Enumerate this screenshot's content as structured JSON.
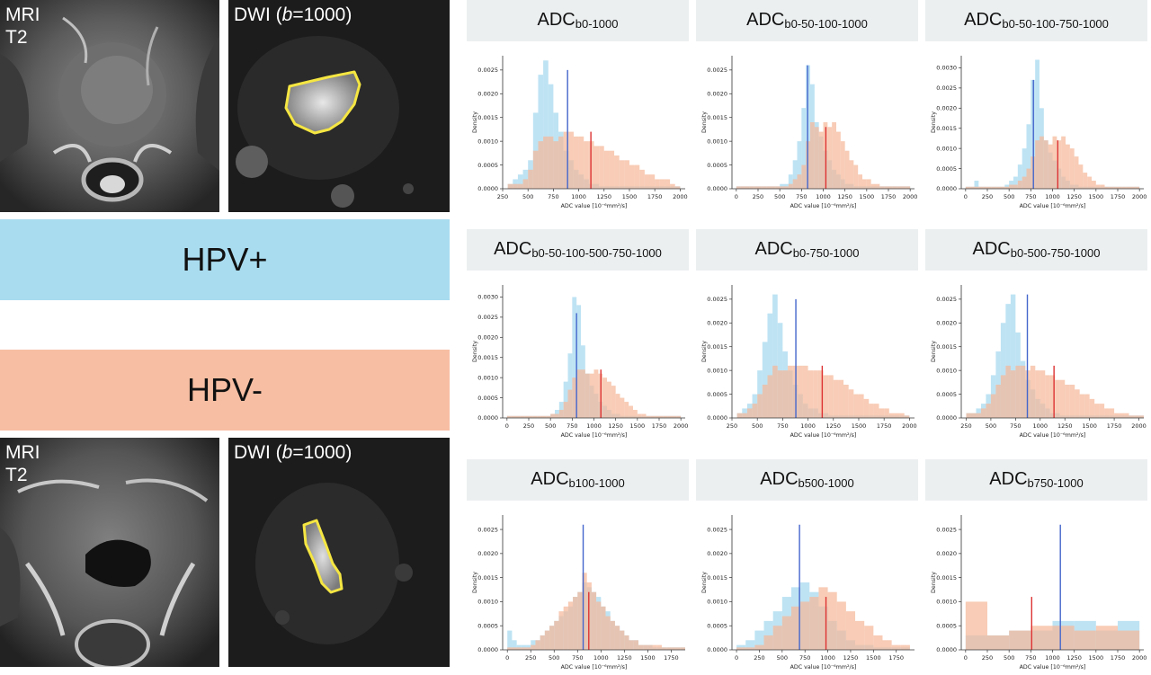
{
  "images": {
    "top": {
      "mri_label": "MRI\nT2",
      "dwi_prefix": "DWI (",
      "dwi_b": "b",
      "dwi_suffix": "=1000)"
    },
    "bottom": {
      "mri_label": "MRI\nT2",
      "dwi_prefix": "DWI (",
      "dwi_b": "b",
      "dwi_suffix": "=1000)"
    }
  },
  "legend": {
    "positive": "HPV+",
    "negative": "HPV-"
  },
  "colors": {
    "positive": "#a5d8ee",
    "negative": "#f5b89a",
    "positive_band": "#a9dcef",
    "negative_band": "#f7bea3",
    "positive_median": "#4466cc",
    "negative_median": "#dd3333",
    "title_bg": "#eceff0"
  },
  "chart_data": [
    {
      "type": "histogram",
      "title_main": "ADC",
      "title_sub": "b0-1000",
      "xlabel": "ADC value [10⁻⁶mm²/s]",
      "ylabel": "Density",
      "xlim": [
        250,
        2050
      ],
      "ylim": [
        0,
        0.0028
      ],
      "xticks": [
        250,
        500,
        750,
        1000,
        1250,
        1500,
        1750,
        2000
      ],
      "yticks": [
        "0.0000",
        "0.0005",
        "0.0010",
        "0.0015",
        "0.0020",
        "0.0025"
      ],
      "bin_start": 300,
      "bin_width": 50,
      "hpv_pos": [
        0.0001,
        0.0002,
        0.0003,
        0.0004,
        0.0006,
        0.0016,
        0.0024,
        0.0027,
        0.0022,
        0.0016,
        0.0012,
        0.0008,
        0.0006,
        0.0004,
        0.0003,
        0.0002,
        0.0001,
        0.0001,
        5e-05,
        5e-05,
        5e-05,
        5e-05,
        5e-05,
        5e-05,
        5e-05,
        5e-05,
        5e-05,
        5e-05,
        5e-05,
        5e-05,
        5e-05,
        5e-05,
        5e-05,
        5e-05
      ],
      "hpv_neg": [
        0.0001,
        0.0001,
        0.0001,
        0.0002,
        0.0004,
        0.0008,
        0.001,
        0.0011,
        0.0011,
        0.001,
        0.0011,
        0.0012,
        0.0012,
        0.0011,
        0.0011,
        0.001,
        0.001,
        0.0009,
        0.0009,
        0.0008,
        0.0008,
        0.0007,
        0.0006,
        0.0006,
        0.0005,
        0.0005,
        0.0004,
        0.0003,
        0.0003,
        0.0002,
        0.0002,
        0.0002,
        0.0001,
        5e-05
      ],
      "median_pos": 890,
      "median_neg": 1120,
      "median_pos_height": 0.0025,
      "median_neg_height": 0.0012
    },
    {
      "type": "histogram",
      "title_main": "ADC",
      "title_sub": "b0-50-100-1000",
      "xlabel": "ADC value [10⁻⁶mm²/s]",
      "ylabel": "Density",
      "xlim": [
        -50,
        2050
      ],
      "ylim": [
        0,
        0.0028
      ],
      "xticks": [
        0,
        250,
        500,
        750,
        1000,
        1250,
        1500,
        1750,
        2000
      ],
      "yticks": [
        "0.0000",
        "0.0005",
        "0.0010",
        "0.0015",
        "0.0020",
        "0.0025"
      ],
      "bin_start": 0,
      "bin_width": 50,
      "hpv_pos": [
        5e-05,
        5e-05,
        5e-05,
        5e-05,
        5e-05,
        5e-05,
        5e-05,
        5e-05,
        5e-05,
        5e-05,
        0.0001,
        0.0001,
        0.0003,
        0.0006,
        0.001,
        0.0017,
        0.0026,
        0.0022,
        0.0014,
        0.0011,
        0.0008,
        0.0006,
        0.0004,
        0.0003,
        0.0002,
        0.0001,
        0.0001,
        5e-05,
        5e-05,
        5e-05,
        5e-05,
        5e-05,
        5e-05,
        5e-05,
        5e-05,
        5e-05,
        5e-05,
        5e-05,
        5e-05,
        5e-05
      ],
      "hpv_neg": [
        5e-05,
        5e-05,
        5e-05,
        5e-05,
        5e-05,
        5e-05,
        5e-05,
        5e-05,
        5e-05,
        5e-05,
        5e-05,
        5e-05,
        0.0001,
        0.0002,
        0.0003,
        0.0005,
        0.001,
        0.0014,
        0.0013,
        0.0012,
        0.0014,
        0.0013,
        0.0014,
        0.0012,
        0.001,
        0.0008,
        0.0006,
        0.0005,
        0.0003,
        0.0002,
        0.0002,
        0.0001,
        0.0001,
        5e-05,
        5e-05,
        5e-05,
        5e-05,
        5e-05,
        5e-05,
        5e-05
      ],
      "median_pos": 820,
      "median_neg": 1030,
      "median_pos_height": 0.0026,
      "median_neg_height": 0.0013
    },
    {
      "type": "histogram",
      "title_main": "ADC",
      "title_sub": "b0-50-100-750-1000",
      "xlabel": "ADC value [10⁻⁶mm²/s]",
      "ylabel": "Density",
      "xlim": [
        -50,
        2050
      ],
      "ylim": [
        0,
        0.0033
      ],
      "xticks": [
        0,
        250,
        500,
        750,
        1000,
        1250,
        1500,
        1750,
        2000
      ],
      "yticks": [
        "0.0000",
        "0.0005",
        "0.0010",
        "0.0015",
        "0.0020",
        "0.0025",
        "0.0030"
      ],
      "bin_start": 0,
      "bin_width": 50,
      "hpv_pos": [
        5e-05,
        5e-05,
        0.0002,
        5e-05,
        5e-05,
        5e-05,
        5e-05,
        5e-05,
        5e-05,
        0.0001,
        0.0002,
        0.0003,
        0.0006,
        0.001,
        0.0016,
        0.0027,
        0.0032,
        0.002,
        0.0012,
        0.0009,
        0.0007,
        0.0005,
        0.0003,
        0.0002,
        0.0001,
        0.0001,
        5e-05,
        5e-05,
        5e-05,
        5e-05,
        5e-05,
        5e-05,
        5e-05,
        5e-05,
        5e-05,
        5e-05,
        5e-05,
        5e-05,
        5e-05,
        5e-05
      ],
      "hpv_neg": [
        5e-05,
        5e-05,
        5e-05,
        5e-05,
        5e-05,
        5e-05,
        5e-05,
        5e-05,
        5e-05,
        5e-05,
        0.0001,
        0.0001,
        0.0002,
        0.0003,
        0.0005,
        0.0008,
        0.0012,
        0.0013,
        0.0012,
        0.0011,
        0.0013,
        0.0012,
        0.0013,
        0.0011,
        0.001,
        0.0008,
        0.0006,
        0.0004,
        0.0003,
        0.0002,
        0.0001,
        0.0001,
        5e-05,
        5e-05,
        5e-05,
        5e-05,
        5e-05,
        5e-05,
        5e-05,
        5e-05
      ],
      "median_pos": 780,
      "median_neg": 1060,
      "median_pos_height": 0.0027,
      "median_neg_height": 0.0012
    },
    {
      "type": "histogram",
      "title_main": "ADC",
      "title_sub": "b0-50-100-500-750-1000",
      "xlabel": "ADC value [10⁻⁶mm²/s]",
      "ylabel": "Density",
      "xlim": [
        -50,
        2050
      ],
      "ylim": [
        0,
        0.0033
      ],
      "xticks": [
        0,
        250,
        500,
        750,
        1000,
        1250,
        1500,
        1750,
        2000
      ],
      "yticks": [
        "0.0000",
        "0.0005",
        "0.0010",
        "0.0015",
        "0.0020",
        "0.0025",
        "0.0030"
      ],
      "bin_start": 0,
      "bin_width": 50,
      "hpv_pos": [
        5e-05,
        5e-05,
        5e-05,
        5e-05,
        5e-05,
        5e-05,
        5e-05,
        5e-05,
        5e-05,
        5e-05,
        0.0001,
        0.0002,
        0.0004,
        0.0009,
        0.0016,
        0.003,
        0.0028,
        0.0018,
        0.0011,
        0.0008,
        0.0006,
        0.0004,
        0.0003,
        0.0002,
        0.0001,
        0.0001,
        5e-05,
        5e-05,
        5e-05,
        5e-05,
        5e-05,
        5e-05,
        5e-05,
        5e-05,
        5e-05,
        5e-05,
        5e-05,
        5e-05,
        5e-05,
        5e-05
      ],
      "hpv_neg": [
        5e-05,
        5e-05,
        5e-05,
        5e-05,
        5e-05,
        5e-05,
        5e-05,
        5e-05,
        5e-05,
        5e-05,
        0.0001,
        0.0001,
        0.0002,
        0.0004,
        0.0007,
        0.001,
        0.0012,
        0.0012,
        0.0011,
        0.0011,
        0.0012,
        0.0011,
        0.001,
        0.0009,
        0.0008,
        0.0006,
        0.0005,
        0.0004,
        0.0003,
        0.0002,
        0.0001,
        0.0001,
        5e-05,
        5e-05,
        5e-05,
        5e-05,
        5e-05,
        5e-05,
        5e-05,
        5e-05
      ],
      "median_pos": 800,
      "median_neg": 1080,
      "median_pos_height": 0.0026,
      "median_neg_height": 0.0012
    },
    {
      "type": "histogram",
      "title_main": "ADC",
      "title_sub": "b0-750-1000",
      "xlabel": "ADC value [10⁻⁶mm²/s]",
      "ylabel": "Density",
      "xlim": [
        250,
        2050
      ],
      "ylim": [
        0,
        0.0028
      ],
      "xticks": [
        250,
        500,
        750,
        1000,
        1250,
        1500,
        1750,
        2000
      ],
      "yticks": [
        "0.0000",
        "0.0005",
        "0.0010",
        "0.0015",
        "0.0020",
        "0.0025"
      ],
      "bin_start": 300,
      "bin_width": 50,
      "hpv_pos": [
        0.0001,
        0.0002,
        0.0003,
        0.0005,
        0.001,
        0.0016,
        0.0022,
        0.0026,
        0.002,
        0.0014,
        0.001,
        0.0007,
        0.0005,
        0.0003,
        0.0002,
        0.0002,
        0.0001,
        0.0001,
        5e-05,
        5e-05,
        5e-05,
        5e-05,
        5e-05,
        5e-05,
        5e-05,
        5e-05,
        5e-05,
        5e-05,
        5e-05,
        5e-05,
        5e-05,
        5e-05,
        5e-05,
        5e-05
      ],
      "hpv_neg": [
        0.0001,
        0.0001,
        0.0002,
        0.0003,
        0.0005,
        0.0007,
        0.0009,
        0.0011,
        0.001,
        0.001,
        0.0011,
        0.0011,
        0.0011,
        0.0011,
        0.001,
        0.001,
        0.001,
        0.0009,
        0.0009,
        0.0008,
        0.0008,
        0.0007,
        0.0006,
        0.0005,
        0.0005,
        0.0004,
        0.0003,
        0.0003,
        0.0002,
        0.0002,
        0.0001,
        0.0001,
        0.0001,
        5e-05
      ],
      "median_pos": 880,
      "median_neg": 1140,
      "median_pos_height": 0.0025,
      "median_neg_height": 0.0011
    },
    {
      "type": "histogram",
      "title_main": "ADC",
      "title_sub": "b0-500-750-1000",
      "xlabel": "ADC value [10⁻⁶mm²/s]",
      "ylabel": "Density",
      "xlim": [
        200,
        2050
      ],
      "ylim": [
        0,
        0.0028
      ],
      "xticks": [
        250,
        500,
        750,
        1000,
        1250,
        1500,
        1750,
        2000
      ],
      "yticks": [
        "0.0000",
        "0.0005",
        "0.0010",
        "0.0015",
        "0.0020",
        "0.0025"
      ],
      "bin_start": 250,
      "bin_width": 50,
      "hpv_pos": [
        0.0001,
        0.0001,
        0.0002,
        0.0003,
        0.0005,
        0.0009,
        0.0014,
        0.002,
        0.0024,
        0.0026,
        0.0018,
        0.0012,
        0.0008,
        0.0006,
        0.0004,
        0.0003,
        0.0002,
        0.0001,
        0.0001,
        5e-05,
        5e-05,
        5e-05,
        5e-05,
        5e-05,
        5e-05,
        5e-05,
        5e-05,
        5e-05,
        5e-05,
        5e-05,
        5e-05,
        5e-05,
        5e-05,
        5e-05,
        5e-05,
        5e-05
      ],
      "hpv_neg": [
        0.0001,
        0.0001,
        0.0001,
        0.0002,
        0.0003,
        0.0005,
        0.0007,
        0.0009,
        0.0011,
        0.001,
        0.0011,
        0.0011,
        0.001,
        0.0011,
        0.001,
        0.001,
        0.0009,
        0.0009,
        0.0008,
        0.0008,
        0.0007,
        0.0007,
        0.0006,
        0.0005,
        0.0005,
        0.0004,
        0.0003,
        0.0003,
        0.0002,
        0.0002,
        0.0001,
        0.0001,
        0.0001,
        5e-05,
        5e-05,
        5e-05
      ],
      "median_pos": 870,
      "median_neg": 1140,
      "median_pos_height": 0.0026,
      "median_neg_height": 0.0011
    },
    {
      "type": "histogram",
      "title_main": "ADC",
      "title_sub": "b100-1000",
      "xlabel": "ADC value [10⁻⁶mm²/s]",
      "ylabel": "Density",
      "xlim": [
        -50,
        1900
      ],
      "ylim": [
        0,
        0.0028
      ],
      "xticks": [
        0,
        250,
        500,
        750,
        1000,
        1250,
        1500,
        1750
      ],
      "yticks": [
        "0.0000",
        "0.0005",
        "0.0010",
        "0.0015",
        "0.0020",
        "0.0025"
      ],
      "bin_start": 0,
      "bin_width": 50,
      "hpv_pos": [
        0.0004,
        0.0002,
        0.0001,
        0.0001,
        0.0001,
        0.0002,
        0.0002,
        0.0003,
        0.0004,
        0.0005,
        0.0006,
        0.0007,
        0.0008,
        0.0009,
        0.0011,
        0.0012,
        0.0014,
        0.0013,
        0.0012,
        0.0011,
        0.0009,
        0.0008,
        0.0006,
        0.0005,
        0.0004,
        0.0003,
        0.0002,
        0.0002,
        0.0001,
        0.0001,
        0.0001,
        5e-05,
        5e-05,
        5e-05,
        5e-05,
        5e-05,
        5e-05,
        5e-05
      ],
      "hpv_neg": [
        5e-05,
        5e-05,
        5e-05,
        5e-05,
        5e-05,
        0.0001,
        0.0002,
        0.0003,
        0.0004,
        0.0005,
        0.0006,
        0.0008,
        0.0009,
        0.001,
        0.0011,
        0.0012,
        0.0016,
        0.0014,
        0.0012,
        0.001,
        0.0009,
        0.0007,
        0.0006,
        0.0005,
        0.0004,
        0.0003,
        0.0002,
        0.0002,
        0.0001,
        0.0001,
        0.0001,
        0.0001,
        0.0001,
        5e-05,
        5e-05,
        5e-05,
        5e-05,
        5e-05
      ],
      "median_pos": 810,
      "median_neg": 870,
      "median_pos_height": 0.0026,
      "median_neg_height": 0.0012
    },
    {
      "type": "histogram",
      "title_main": "ADC",
      "title_sub": "b500-1000",
      "xlabel": "ADC value [10⁻⁶mm²/s]",
      "ylabel": "Density",
      "xlim": [
        -50,
        1950
      ],
      "ylim": [
        0,
        0.0028
      ],
      "xticks": [
        0,
        250,
        500,
        750,
        1000,
        1250,
        1500,
        1750
      ],
      "yticks": [
        "0.0000",
        "0.0005",
        "0.0010",
        "0.0015",
        "0.0020",
        "0.0025"
      ],
      "bin_start": 0,
      "bin_width": 100,
      "hpv_pos": [
        0.0001,
        0.0002,
        0.0004,
        0.0006,
        0.0008,
        0.0011,
        0.0013,
        0.0014,
        0.0012,
        0.0009,
        0.0006,
        0.0004,
        0.0002,
        0.0001,
        0.0001,
        5e-05,
        5e-05,
        5e-05,
        5e-05
      ],
      "hpv_neg": [
        5e-05,
        5e-05,
        0.0001,
        0.0003,
        0.0005,
        0.0007,
        0.0009,
        0.001,
        0.0011,
        0.0013,
        0.0012,
        0.001,
        0.0008,
        0.0006,
        0.0005,
        0.0003,
        0.0002,
        0.0001,
        0.0001
      ],
      "median_pos": 690,
      "median_neg": 980,
      "median_pos_height": 0.0026,
      "median_neg_height": 0.0011
    },
    {
      "type": "histogram",
      "title_main": "ADC",
      "title_sub": "b750-1000",
      "xlabel": "ADC value [10⁻⁶mm²/s]",
      "ylabel": "Density",
      "xlim": [
        -50,
        2050
      ],
      "ylim": [
        0,
        0.0028
      ],
      "xticks": [
        0,
        250,
        500,
        750,
        1000,
        1250,
        1500,
        1750,
        2000
      ],
      "yticks": [
        "0.0000",
        "0.0005",
        "0.0010",
        "0.0015",
        "0.0020",
        "0.0025"
      ],
      "bin_start": 0,
      "bin_width": 250,
      "hpv_pos": [
        0.0003,
        0.0003,
        0.0004,
        0.0004,
        0.0006,
        0.0006,
        0.0004,
        0.0006
      ],
      "hpv_neg": [
        0.001,
        0.0003,
        0.0004,
        0.0005,
        0.0005,
        0.0004,
        0.0005,
        0.0004
      ],
      "median_pos": 1090,
      "median_neg": 760,
      "median_pos_height": 0.0026,
      "median_neg_height": 0.0011
    }
  ]
}
